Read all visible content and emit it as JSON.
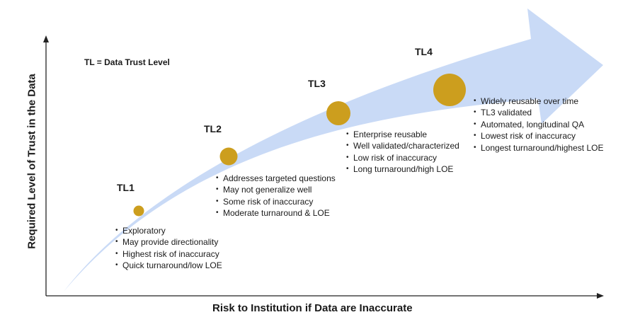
{
  "note": "TL = Data Trust Level",
  "x_axis_label": "Risk to Institution if Data are Inaccurate",
  "y_axis_label": "Required Level of Trust in the Data",
  "colors": {
    "arrow": "#c9daf6",
    "marker": "#cc9e1e",
    "axis": "#222222"
  },
  "levels": [
    {
      "label": "TL1",
      "bullets": [
        "Exploratory",
        "May provide directionality",
        "Highest risk of inaccuracy",
        "Quick turnaround/low LOE"
      ]
    },
    {
      "label": "TL2",
      "bullets": [
        "Addresses targeted questions",
        "May not generalize well",
        "Some risk of inaccuracy",
        "Moderate turnaround & LOE"
      ]
    },
    {
      "label": "TL3",
      "bullets": [
        "Enterprise reusable",
        "Well validated/characterized",
        "Low risk of inaccuracy",
        "Long turnaround/high LOE"
      ]
    },
    {
      "label": "TL4",
      "bullets": [
        "Widely reusable over time",
        "TL3 validated",
        "Automated, longitudinal QA",
        "Lowest risk of inaccuracy",
        "Longest turnaround/highest LOE"
      ]
    }
  ]
}
